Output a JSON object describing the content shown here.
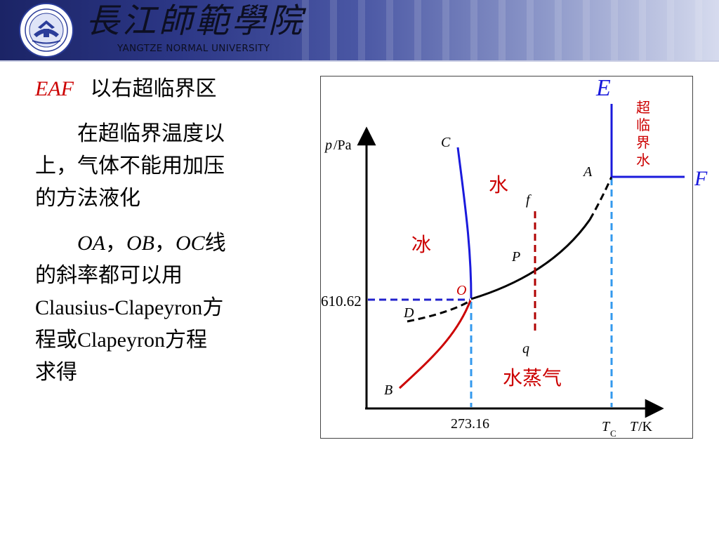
{
  "header": {
    "school_name_cn": "長江師範學院",
    "school_name_en": "YANGTZE NORMAL UNIVERSITY",
    "logo_icon": "university-seal-icon"
  },
  "text": {
    "eaf_label": "EAF",
    "eaf_desc": "以右超临界区",
    "para1_line1": "在超临界温度以",
    "para1_line2": "上，气体不能用加压",
    "para1_line3": "的方法液化",
    "para2_lines": "OA，OB，OC线",
    "para2_oa": "OA",
    "para2_sep1": "，",
    "para2_ob": "OB",
    "para2_sep2": "，",
    "para2_oc": "OC",
    "para2_line1_end": "线",
    "para2_line2": "的斜率都可以用",
    "para2_line3_latin": "Clausius-Clapeyron",
    "para2_line3_cn": "方",
    "para2_line4_cn1": "程或",
    "para2_line4_latin": "Clapeyron",
    "para2_line4_cn2": "方程",
    "para2_line5": "求得"
  },
  "diagram": {
    "y_axis_p": "p",
    "y_axis_unit": "/Pa",
    "x_axis_T": "T",
    "x_axis_unit": "/K",
    "tc_T": "T",
    "tc_sub": "C",
    "tick_x": "273.16",
    "tick_y": "610.62",
    "point_E": "E",
    "point_F": "F",
    "point_A": "A",
    "point_B": "B",
    "point_C": "C",
    "point_D": "D",
    "point_O": "O",
    "point_P": "P",
    "point_f": "f",
    "point_q": "q",
    "region_ice": "冰",
    "region_water": "水",
    "region_vapor": "水蒸气",
    "region_supercritical_lines": [
      "超",
      "临",
      "界",
      "水"
    ],
    "colors": {
      "black": "#000000",
      "blue": "#1a1adc",
      "red": "#cc0000",
      "dashed_red": "#b00000",
      "dashed_lightblue": "#3399ee",
      "dashed_blue": "#2222cc"
    }
  }
}
